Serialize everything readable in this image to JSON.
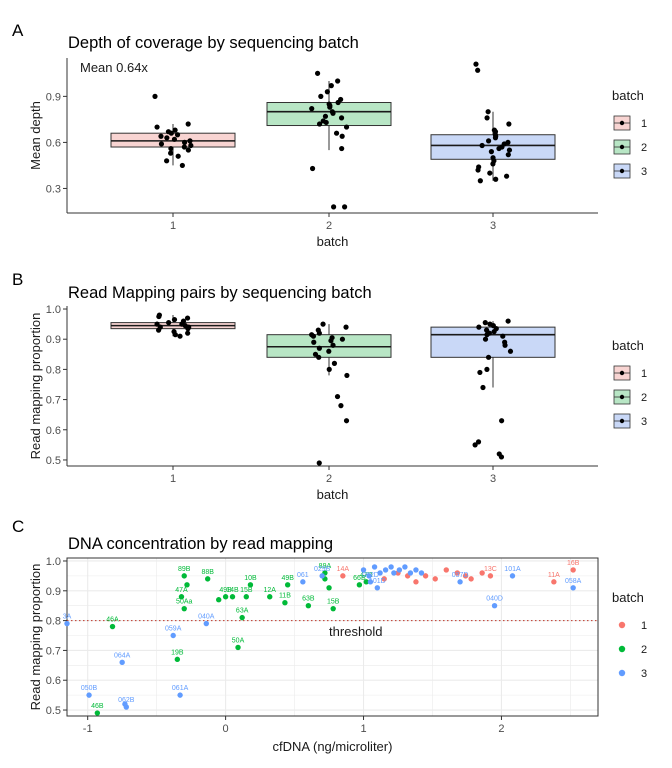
{
  "colors": {
    "batch1_fill": "#f8d4d2",
    "batch2_fill": "#b8e6c5",
    "batch3_fill": "#c9d8f7",
    "batch1_point": "#f8766d",
    "batch2_point": "#00ba38",
    "batch3_point": "#619cff",
    "threshold": "#c0392b",
    "grid": "#ebebeb"
  },
  "chart_data": [
    {
      "panel": "A",
      "type": "box",
      "title": "Depth of coverage by sequencing batch",
      "xlabel": "batch",
      "ylabel": "Mean depth",
      "annotation": "Mean 0.64x",
      "categories": [
        "1",
        "2",
        "3"
      ],
      "yticks": [
        "0.3",
        "0.6",
        "0.9"
      ],
      "yticks_values": [
        0.3,
        0.6,
        0.9
      ],
      "ylim": [
        0.14,
        1.15
      ],
      "legend_title": "batch",
      "legend_labels": [
        "1",
        "2",
        "3"
      ],
      "boxes": [
        {
          "q1": 0.57,
          "median": 0.61,
          "q3": 0.66,
          "whisker_low": 0.45,
          "whisker_high": 0.72
        },
        {
          "q1": 0.71,
          "median": 0.8,
          "q3": 0.86,
          "whisker_low": 0.55,
          "whisker_high": 1.0
        },
        {
          "q1": 0.49,
          "median": 0.58,
          "q3": 0.65,
          "whisker_low": 0.35,
          "whisker_high": 0.8
        }
      ],
      "points": [
        [
          0.9,
          0.72,
          0.7,
          0.68,
          0.67,
          0.66,
          0.65,
          0.64,
          0.63,
          0.62,
          0.61,
          0.6,
          0.59,
          0.58,
          0.57,
          0.56,
          0.55,
          0.53,
          0.51,
          0.48,
          0.45
        ],
        [
          1.05,
          1.0,
          0.97,
          0.93,
          0.9,
          0.88,
          0.86,
          0.85,
          0.84,
          0.83,
          0.82,
          0.8,
          0.79,
          0.77,
          0.76,
          0.74,
          0.73,
          0.72,
          0.7,
          0.66,
          0.64,
          0.56,
          0.43,
          0.18,
          0.18
        ],
        [
          1.11,
          1.07,
          0.8,
          0.76,
          0.72,
          0.68,
          0.67,
          0.65,
          0.64,
          0.63,
          0.61,
          0.6,
          0.59,
          0.58,
          0.57,
          0.56,
          0.55,
          0.54,
          0.52,
          0.5,
          0.48,
          0.46,
          0.44,
          0.42,
          0.4,
          0.38,
          0.36,
          0.35
        ]
      ]
    },
    {
      "panel": "B",
      "type": "box",
      "title": "Read Mapping pairs by sequencing batch",
      "xlabel": "batch",
      "ylabel": "Read mapping proportion",
      "categories": [
        "1",
        "2",
        "3"
      ],
      "yticks": [
        "0.5",
        "0.6",
        "0.7",
        "0.8",
        "0.9",
        "1.0"
      ],
      "yticks_values": [
        0.5,
        0.6,
        0.7,
        0.8,
        0.9,
        1.0
      ],
      "ylim": [
        0.48,
        1.01
      ],
      "legend_title": "batch",
      "legend_labels": [
        "1",
        "2",
        "3"
      ],
      "boxes": [
        {
          "q1": 0.935,
          "median": 0.945,
          "q3": 0.955,
          "whisker_low": 0.91,
          "whisker_high": 0.98
        },
        {
          "q1": 0.84,
          "median": 0.875,
          "q3": 0.915,
          "whisker_low": 0.78,
          "whisker_high": 0.95
        },
        {
          "q1": 0.84,
          "median": 0.915,
          "q3": 0.94,
          "whisker_low": 0.74,
          "whisker_high": 0.96
        }
      ],
      "points": [
        [
          0.98,
          0.975,
          0.97,
          0.965,
          0.96,
          0.955,
          0.95,
          0.95,
          0.945,
          0.94,
          0.94,
          0.935,
          0.93,
          0.925,
          0.92,
          0.915,
          0.91
        ],
        [
          0.95,
          0.94,
          0.93,
          0.92,
          0.915,
          0.91,
          0.905,
          0.9,
          0.895,
          0.89,
          0.88,
          0.87,
          0.86,
          0.85,
          0.84,
          0.82,
          0.8,
          0.78,
          0.71,
          0.68,
          0.63,
          0.49
        ],
        [
          0.96,
          0.955,
          0.95,
          0.945,
          0.94,
          0.935,
          0.93,
          0.925,
          0.92,
          0.915,
          0.91,
          0.9,
          0.89,
          0.88,
          0.86,
          0.84,
          0.8,
          0.79,
          0.74,
          0.63,
          0.56,
          0.55,
          0.52,
          0.51
        ]
      ]
    },
    {
      "panel": "C",
      "type": "scatter",
      "title": "DNA concentration by read mapping",
      "xlabel": "cfDNA (ng/microliter)",
      "ylabel": "Read mapping proportion",
      "xticks": [
        "-1",
        "0",
        "1",
        "2"
      ],
      "xticks_values": [
        -1,
        0,
        1,
        2
      ],
      "yticks": [
        "0.5",
        "0.6",
        "0.7",
        "0.8",
        "0.9",
        "1.0"
      ],
      "yticks_values": [
        0.5,
        0.6,
        0.7,
        0.8,
        0.9,
        1.0
      ],
      "xlim": [
        -1.15,
        2.7
      ],
      "ylim": [
        0.48,
        1.01
      ],
      "threshold": 0.8,
      "threshold_label": "threshold",
      "legend_title": "batch",
      "legend_labels": [
        "1",
        "2",
        "3"
      ],
      "series": [
        {
          "name": "1",
          "points": [
            {
              "x": 0.85,
              "y": 0.95,
              "label": "14A"
            },
            {
              "x": 1.15,
              "y": 0.94,
              "label": ""
            },
            {
              "x": 1.25,
              "y": 0.96,
              "label": ""
            },
            {
              "x": 1.32,
              "y": 0.95,
              "label": ""
            },
            {
              "x": 1.38,
              "y": 0.93,
              "label": ""
            },
            {
              "x": 1.45,
              "y": 0.95,
              "label": ""
            },
            {
              "x": 1.52,
              "y": 0.94,
              "label": ""
            },
            {
              "x": 1.6,
              "y": 0.97,
              "label": ""
            },
            {
              "x": 1.68,
              "y": 0.96,
              "label": ""
            },
            {
              "x": 1.74,
              "y": 0.95,
              "label": ""
            },
            {
              "x": 1.78,
              "y": 0.94,
              "label": ""
            },
            {
              "x": 1.86,
              "y": 0.96,
              "label": ""
            },
            {
              "x": 1.92,
              "y": 0.95,
              "label": "13C"
            },
            {
              "x": 2.38,
              "y": 0.93,
              "label": "11A"
            },
            {
              "x": 2.52,
              "y": 0.97,
              "label": "16B"
            }
          ]
        },
        {
          "name": "2",
          "points": [
            {
              "x": -0.82,
              "y": 0.78,
              "label": "46A"
            },
            {
              "x": -0.93,
              "y": 0.49,
              "label": "46B"
            },
            {
              "x": -0.35,
              "y": 0.67,
              "label": "19B"
            },
            {
              "x": -0.32,
              "y": 0.88,
              "label": "47A"
            },
            {
              "x": -0.3,
              "y": 0.84,
              "label": "50Aa"
            },
            {
              "x": -0.28,
              "y": 0.92,
              "label": ""
            },
            {
              "x": -0.3,
              "y": 0.95,
              "label": "89B"
            },
            {
              "x": -0.13,
              "y": 0.94,
              "label": "88B"
            },
            {
              "x": -0.05,
              "y": 0.87,
              "label": ""
            },
            {
              "x": 0.0,
              "y": 0.88,
              "label": "49B"
            },
            {
              "x": 0.05,
              "y": 0.88,
              "label": "14B"
            },
            {
              "x": 0.09,
              "y": 0.71,
              "label": "50A"
            },
            {
              "x": 0.12,
              "y": 0.81,
              "label": "63A"
            },
            {
              "x": 0.15,
              "y": 0.88,
              "label": "15B"
            },
            {
              "x": 0.18,
              "y": 0.92,
              "label": "10B"
            },
            {
              "x": 0.32,
              "y": 0.88,
              "label": "12A"
            },
            {
              "x": 0.43,
              "y": 0.86,
              "label": "11B"
            },
            {
              "x": 0.45,
              "y": 0.92,
              "label": "49B"
            },
            {
              "x": 0.6,
              "y": 0.85,
              "label": "63B"
            },
            {
              "x": 0.72,
              "y": 0.96,
              "label": "89A"
            },
            {
              "x": 0.72,
              "y": 0.94,
              "label": ""
            },
            {
              "x": 0.78,
              "y": 0.84,
              "label": "15B"
            },
            {
              "x": 0.97,
              "y": 0.92,
              "label": "66B"
            },
            {
              "x": 1.02,
              "y": 0.93,
              "label": "47B"
            },
            {
              "x": 0.75,
              "y": 0.91,
              "label": ""
            }
          ]
        },
        {
          "name": "3",
          "points": [
            {
              "x": -1.15,
              "y": 0.79,
              "label": "3A"
            },
            {
              "x": -0.99,
              "y": 0.55,
              "label": "050B"
            },
            {
              "x": -0.75,
              "y": 0.66,
              "label": "064A"
            },
            {
              "x": -0.72,
              "y": 0.51,
              "label": "062B"
            },
            {
              "x": -0.73,
              "y": 0.52,
              "label": ""
            },
            {
              "x": -0.38,
              "y": 0.75,
              "label": "059A"
            },
            {
              "x": -0.33,
              "y": 0.55,
              "label": "061A"
            },
            {
              "x": -0.14,
              "y": 0.79,
              "label": "040A"
            },
            {
              "x": 0.56,
              "y": 0.93,
              "label": "061"
            },
            {
              "x": 0.7,
              "y": 0.95,
              "label": "029B"
            },
            {
              "x": 1.0,
              "y": 0.97,
              "label": ""
            },
            {
              "x": 1.04,
              "y": 0.95,
              "label": ""
            },
            {
              "x": 1.08,
              "y": 0.98,
              "label": ""
            },
            {
              "x": 1.12,
              "y": 0.96,
              "label": ""
            },
            {
              "x": 1.16,
              "y": 0.97,
              "label": ""
            },
            {
              "x": 1.2,
              "y": 0.98,
              "label": ""
            },
            {
              "x": 1.22,
              "y": 0.96,
              "label": ""
            },
            {
              "x": 1.26,
              "y": 0.97,
              "label": ""
            },
            {
              "x": 1.3,
              "y": 0.98,
              "label": ""
            },
            {
              "x": 1.34,
              "y": 0.96,
              "label": ""
            },
            {
              "x": 1.38,
              "y": 0.97,
              "label": ""
            },
            {
              "x": 1.42,
              "y": 0.96,
              "label": ""
            },
            {
              "x": 1.1,
              "y": 0.91,
              "label": "101D"
            },
            {
              "x": 1.05,
              "y": 0.93,
              "label": "052D"
            },
            {
              "x": 1.7,
              "y": 0.93,
              "label": "037D"
            },
            {
              "x": 1.95,
              "y": 0.85,
              "label": "040D"
            },
            {
              "x": 2.08,
              "y": 0.95,
              "label": "101A"
            },
            {
              "x": 2.52,
              "y": 0.91,
              "label": "058A"
            }
          ]
        }
      ]
    }
  ]
}
